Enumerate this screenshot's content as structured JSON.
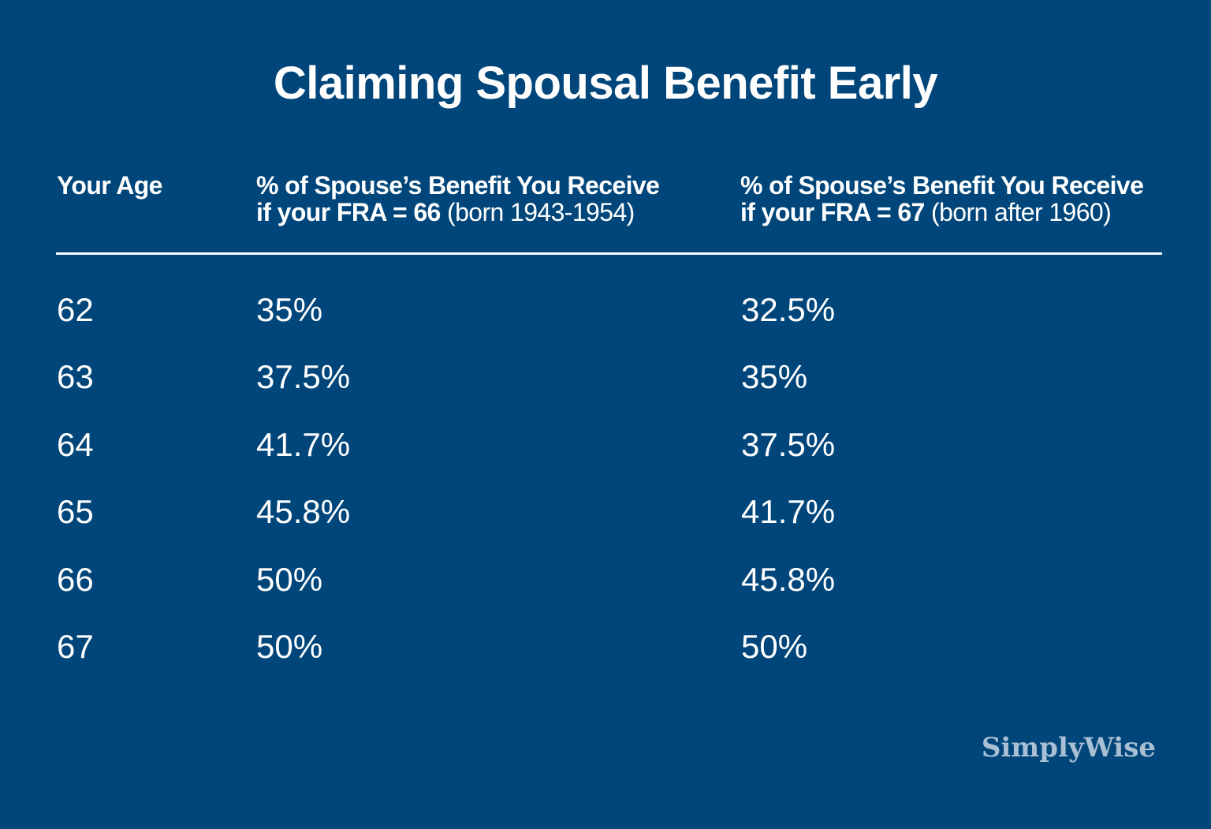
{
  "title": "Claiming Spousal Benefit Early",
  "headers": {
    "age": "Your Age",
    "col1_line1": "% of Spouse’s Benefit You Receive",
    "col1_line2_bold": "if your FRA = 66",
    "col1_line2_light": " (born 1943-1954)",
    "col2_line1": "% of Spouse’s Benefit You Receive",
    "col2_line2_bold": "if your FRA = 67",
    "col2_line2_light": " (born after 1960)"
  },
  "brand": "SimplyWise",
  "colors": {
    "background": "#00467a",
    "text": "#ffffff",
    "brand": "#a9bfd3"
  },
  "chart_data": {
    "type": "table",
    "title": "Claiming Spousal Benefit Early",
    "columns": [
      "Your Age",
      "% of Spouse’s Benefit You Receive if your FRA = 66 (born 1943-1954)",
      "% of Spouse’s Benefit You Receive if your FRA = 67 (born after 1960)"
    ],
    "rows": [
      {
        "age": "62",
        "fra66": "35%",
        "fra67": "32.5%"
      },
      {
        "age": "63",
        "fra66": "37.5%",
        "fra67": "35%"
      },
      {
        "age": "64",
        "fra66": "41.7%",
        "fra67": "37.5%"
      },
      {
        "age": "65",
        "fra66": "45.8%",
        "fra67": "41.7%"
      },
      {
        "age": "66",
        "fra66": "50%",
        "fra67": "45.8%"
      },
      {
        "age": "67",
        "fra66": "50%",
        "fra67": "50%"
      }
    ]
  }
}
